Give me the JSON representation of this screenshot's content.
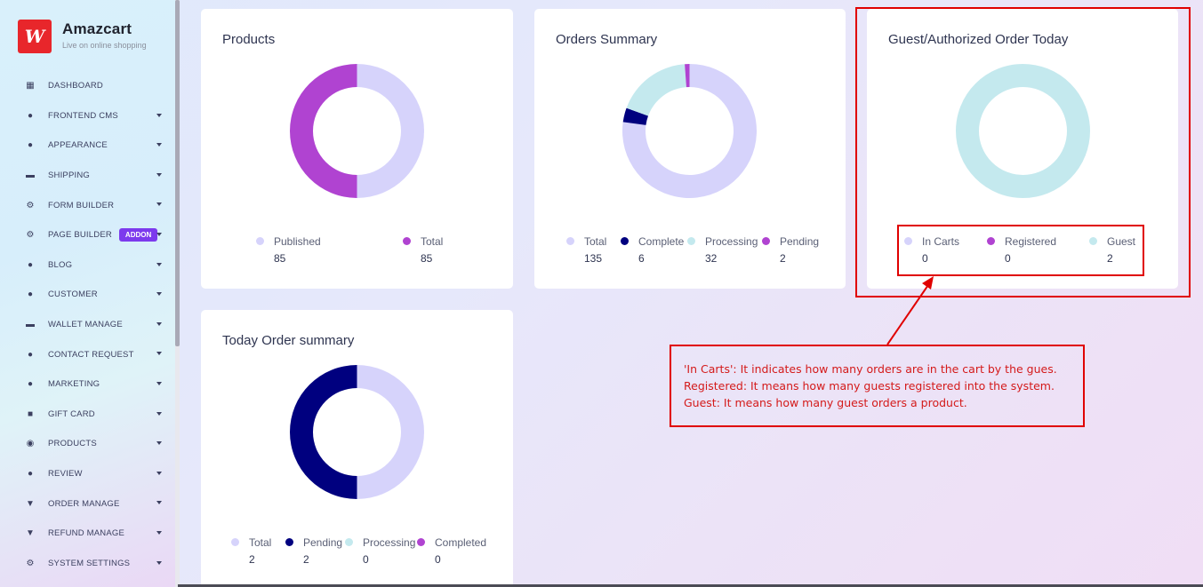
{
  "brand": {
    "name": "Amazcart",
    "tagline": "Live on online shopping",
    "logo_text": "W"
  },
  "sidebar": {
    "items": [
      {
        "label": "DASHBOARD",
        "icon": "grid-icon",
        "caret": false
      },
      {
        "label": "FRONTEND CMS",
        "icon": "user-icon",
        "caret": true
      },
      {
        "label": "APPEARANCE",
        "icon": "user-icon",
        "caret": true
      },
      {
        "label": "SHIPPING",
        "icon": "money-icon",
        "caret": true
      },
      {
        "label": "FORM BUILDER",
        "icon": "cogs-icon",
        "caret": true
      },
      {
        "label": "PAGE BUILDER",
        "icon": "cogs-icon",
        "caret": true,
        "badge": "ADDON"
      },
      {
        "label": "BLOG",
        "icon": "users-icon",
        "caret": true
      },
      {
        "label": "CUSTOMER",
        "icon": "users-icon",
        "caret": true
      },
      {
        "label": "WALLET MANAGE",
        "icon": "wallet-icon",
        "caret": true
      },
      {
        "label": "CONTACT REQUEST",
        "icon": "user-icon",
        "caret": true
      },
      {
        "label": "MARKETING",
        "icon": "user-icon",
        "caret": true
      },
      {
        "label": "GIFT CARD",
        "icon": "gift-icon",
        "caret": true
      },
      {
        "label": "PRODUCTS",
        "icon": "product-icon",
        "caret": true
      },
      {
        "label": "REVIEW",
        "icon": "user-icon",
        "caret": true
      },
      {
        "label": "ORDER MANAGE",
        "icon": "cart-icon",
        "caret": true
      },
      {
        "label": "REFUND MANAGE",
        "icon": "cart-icon",
        "caret": true
      },
      {
        "label": "SYSTEM SETTINGS",
        "icon": "gear-icon",
        "caret": true
      }
    ]
  },
  "colors": {
    "lavender": "#d6d3fb",
    "purple": "#b043d1",
    "navy": "#00007f",
    "teal": "#c4e9ee"
  },
  "cards": {
    "products": {
      "title": "Products",
      "legend": [
        {
          "label": "Published",
          "value": "85",
          "color": "#d6d3fb"
        },
        {
          "label": "Total",
          "value": "85",
          "color": "#b043d1"
        }
      ]
    },
    "orders_summary": {
      "title": "Orders Summary",
      "legend": [
        {
          "label": "Total",
          "value": "135",
          "color": "#d6d3fb"
        },
        {
          "label": "Complete",
          "value": "6",
          "color": "#00007f"
        },
        {
          "label": "Processing",
          "value": "32",
          "color": "#c4e9ee"
        },
        {
          "label": "Pending",
          "value": "2",
          "color": "#b043d1"
        }
      ]
    },
    "guest_orders": {
      "title": "Guest/Authorized Order Today",
      "legend": [
        {
          "label": "In Carts",
          "value": "0",
          "color": "#d6d3fb"
        },
        {
          "label": "Registered",
          "value": "0",
          "color": "#b043d1"
        },
        {
          "label": "Guest",
          "value": "2",
          "color": "#c4e9ee"
        }
      ]
    },
    "today_orders": {
      "title": "Today Order summary",
      "legend": [
        {
          "label": "Total",
          "value": "2",
          "color": "#d6d3fb"
        },
        {
          "label": "Pending",
          "value": "2",
          "color": "#00007f"
        },
        {
          "label": "Processing",
          "value": "0",
          "color": "#c4e9ee"
        },
        {
          "label": "Completed",
          "value": "0",
          "color": "#b043d1"
        }
      ]
    }
  },
  "chart_data": [
    {
      "type": "pie",
      "title": "Products",
      "categories": [
        "Published",
        "Total"
      ],
      "values": [
        85,
        85
      ]
    },
    {
      "type": "pie",
      "title": "Orders Summary",
      "categories": [
        "Total",
        "Complete",
        "Processing",
        "Pending"
      ],
      "values": [
        135,
        6,
        32,
        2
      ]
    },
    {
      "type": "pie",
      "title": "Guest/Authorized Order Today",
      "categories": [
        "In Carts",
        "Registered",
        "Guest"
      ],
      "values": [
        0,
        0,
        2
      ]
    },
    {
      "type": "pie",
      "title": "Today Order summary",
      "categories": [
        "Total",
        "Pending",
        "Processing",
        "Completed"
      ],
      "values": [
        2,
        2,
        0,
        0
      ]
    }
  ],
  "annotation": {
    "lines": [
      "'In Carts': It indicates how many orders are in the cart by the gues.",
      "Registered: It means how many guests registered into the system.",
      "Guest: It means how many guest orders a product."
    ]
  }
}
